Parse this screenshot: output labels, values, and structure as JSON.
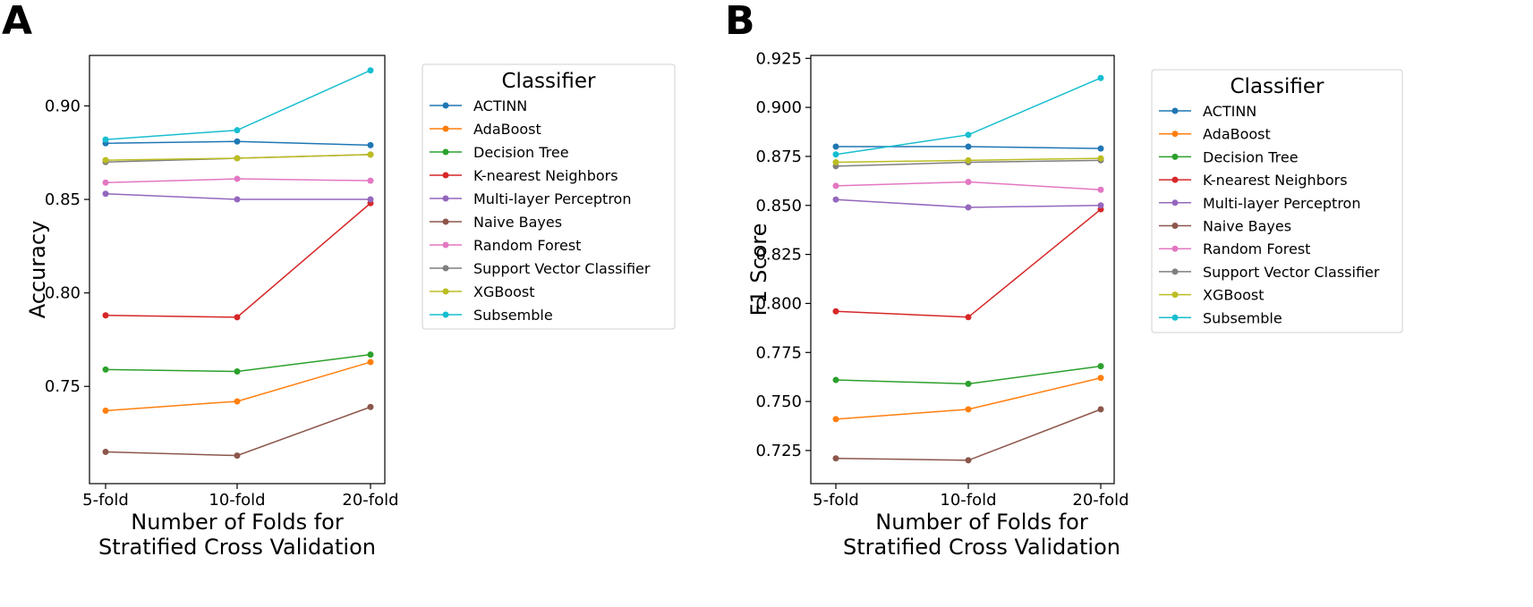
{
  "chart_data": [
    {
      "panel_label": "A",
      "type": "line",
      "categories": [
        "5-fold",
        "10-fold",
        "20-fold"
      ],
      "xlabel": [
        "Number of Folds for",
        "Stratified Cross Validation"
      ],
      "ylabel": "Accuracy",
      "ylim": [
        0.698,
        0.927
      ],
      "yticks": [
        0.75,
        0.8,
        0.85,
        0.9
      ],
      "ytick_labels": [
        "0.75",
        "0.80",
        "0.85",
        "0.90"
      ],
      "grid": false,
      "legend": {
        "title": "Classifier",
        "placement": "right"
      },
      "series": [
        {
          "name": "ACTINN",
          "color": "#1f77b4",
          "values": [
            0.88,
            0.881,
            0.879
          ]
        },
        {
          "name": "AdaBoost",
          "color": "#ff7f0e",
          "values": [
            0.737,
            0.742,
            0.763
          ]
        },
        {
          "name": "Decision Tree",
          "color": "#2ca02c",
          "values": [
            0.759,
            0.758,
            0.767
          ]
        },
        {
          "name": "K-nearest Neighbors",
          "color": "#d62728",
          "values": [
            0.788,
            0.787,
            0.848
          ]
        },
        {
          "name": "Multi-layer Perceptron",
          "color": "#9467bd",
          "values": [
            0.853,
            0.85,
            0.85
          ]
        },
        {
          "name": "Naive Bayes",
          "color": "#8c564b",
          "values": [
            0.715,
            0.713,
            0.739
          ]
        },
        {
          "name": "Random Forest",
          "color": "#e377c2",
          "values": [
            0.859,
            0.861,
            0.86
          ]
        },
        {
          "name": "Support Vector Classifier",
          "color": "#7f7f7f",
          "values": [
            0.87,
            0.872,
            0.874
          ]
        },
        {
          "name": "XGBoost",
          "color": "#bcbd22",
          "values": [
            0.871,
            0.872,
            0.874
          ]
        },
        {
          "name": "Subsemble",
          "color": "#17becf",
          "values": [
            0.882,
            0.887,
            0.919
          ]
        }
      ]
    },
    {
      "panel_label": "B",
      "type": "line",
      "categories": [
        "5-fold",
        "10-fold",
        "20-fold"
      ],
      "xlabel": [
        "Number of Folds for",
        "Stratified Cross Validation"
      ],
      "ylabel": "F1 Score",
      "ylim": [
        0.7081,
        0.9265
      ],
      "yticks": [
        0.725,
        0.75,
        0.775,
        0.8,
        0.825,
        0.85,
        0.875,
        0.9,
        0.925
      ],
      "ytick_labels": [
        "0.725",
        "0.750",
        "0.775",
        "0.800",
        "0.825",
        "0.850",
        "0.875",
        "0.900",
        "0.925"
      ],
      "grid": false,
      "legend": {
        "title": "Classifier",
        "placement": "right"
      },
      "series": [
        {
          "name": "ACTINN",
          "color": "#1f77b4",
          "values": [
            0.88,
            0.88,
            0.879
          ]
        },
        {
          "name": "AdaBoost",
          "color": "#ff7f0e",
          "values": [
            0.741,
            0.746,
            0.762
          ]
        },
        {
          "name": "Decision Tree",
          "color": "#2ca02c",
          "values": [
            0.761,
            0.759,
            0.768
          ]
        },
        {
          "name": "K-nearest Neighbors",
          "color": "#d62728",
          "values": [
            0.796,
            0.793,
            0.848
          ]
        },
        {
          "name": "Multi-layer Perceptron",
          "color": "#9467bd",
          "values": [
            0.853,
            0.849,
            0.85
          ]
        },
        {
          "name": "Naive Bayes",
          "color": "#8c564b",
          "values": [
            0.721,
            0.72,
            0.746
          ]
        },
        {
          "name": "Random Forest",
          "color": "#e377c2",
          "values": [
            0.86,
            0.862,
            0.858
          ]
        },
        {
          "name": "Support Vector Classifier",
          "color": "#7f7f7f",
          "values": [
            0.87,
            0.872,
            0.873
          ]
        },
        {
          "name": "XGBoost",
          "color": "#bcbd22",
          "values": [
            0.872,
            0.873,
            0.874
          ]
        },
        {
          "name": "Subsemble",
          "color": "#17becf",
          "values": [
            0.876,
            0.886,
            0.915
          ]
        }
      ]
    }
  ]
}
